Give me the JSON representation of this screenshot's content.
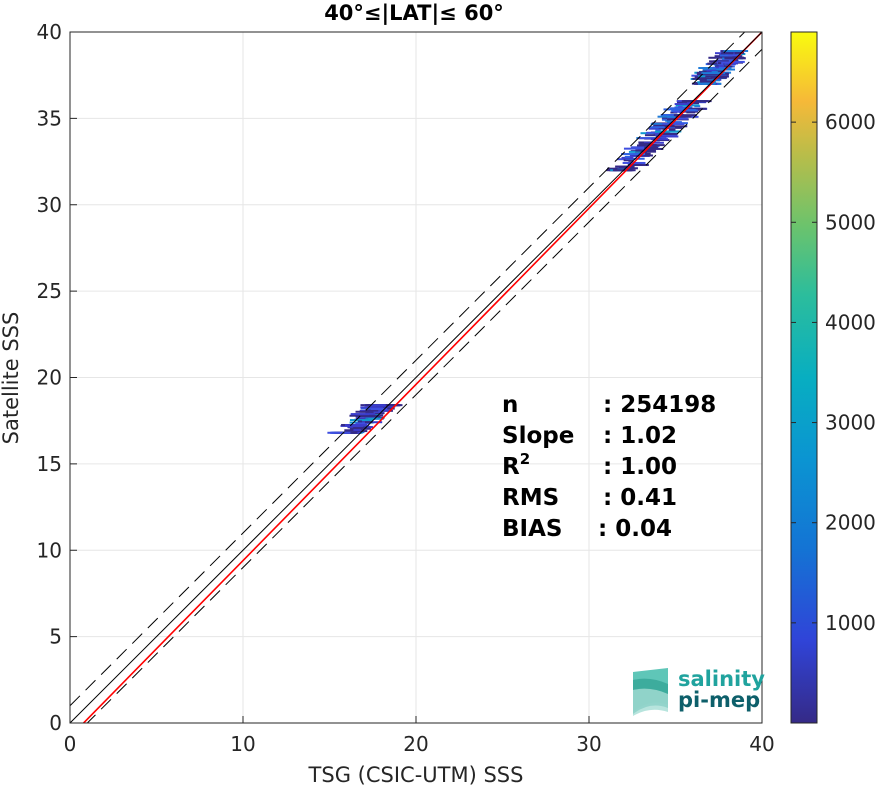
{
  "chart_data": {
    "type": "scatter",
    "title": "40°≤|LAT|≤ 60°",
    "xlabel": "TSG (CSIC-UTM) SSS",
    "ylabel": "Satellite SSS",
    "xlim": [
      0,
      40
    ],
    "ylim": [
      0,
      40
    ],
    "xticks": [
      "0",
      "10",
      "20",
      "30",
      "40"
    ],
    "yticks": [
      "0",
      "5",
      "10",
      "15",
      "20",
      "25",
      "30",
      "35",
      "40"
    ],
    "grid": true,
    "colorbar": {
      "colormap": "parula",
      "range": [
        0,
        6900
      ],
      "ticks": [
        "1000",
        "2000",
        "3000",
        "4000",
        "5000",
        "6000"
      ],
      "tick_values": [
        1000,
        2000,
        3000,
        4000,
        5000,
        6000
      ]
    },
    "lines": [
      {
        "type": "fit",
        "color": "#ff0000",
        "slope": 1.02,
        "intercept": -0.8
      },
      {
        "type": "identity",
        "color": "#000000",
        "slope": 1.0,
        "intercept": 0
      },
      {
        "type": "offset",
        "color": "#000000",
        "dashed": true,
        "slope": 1.0,
        "intercept": 1.0
      },
      {
        "type": "offset",
        "color": "#000000",
        "dashed": true,
        "slope": 1.0,
        "intercept": -1.0
      }
    ],
    "clusters": [
      {
        "x": [
          15.5,
          18.6
        ],
        "y": [
          16.8,
          18.4
        ]
      },
      {
        "x": [
          31.5,
          36.5
        ],
        "y": [
          32.0,
          36.0
        ]
      },
      {
        "x": [
          36.5,
          38.6
        ],
        "y": [
          37.0,
          38.9
        ]
      }
    ],
    "stats": [
      {
        "label": "n",
        "value": ": 254198"
      },
      {
        "label": "Slope",
        "value": ": 1.02"
      },
      {
        "label": "R",
        "sup": "2",
        "value": ": 1.00"
      },
      {
        "label": "RMS",
        "value": ": 0.41"
      },
      {
        "label": "BIAS",
        "value": ": 0.04"
      }
    ]
  },
  "logo": {
    "line1": "salinity",
    "line2": "pi-mep",
    "color": "#20a39e"
  }
}
